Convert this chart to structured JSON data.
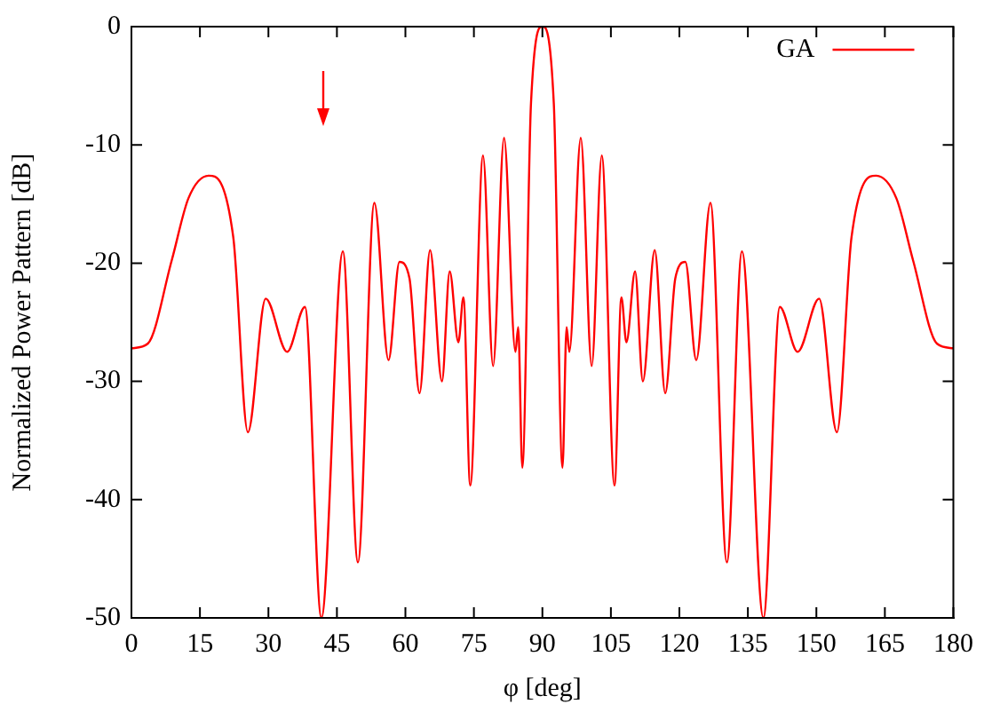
{
  "chart_data": {
    "type": "line",
    "xlabel": "φ [deg]",
    "ylabel": "Normalized Power Pattern [dB]",
    "xlim": [
      0,
      180
    ],
    "xticks": [
      0,
      15,
      30,
      45,
      60,
      75,
      90,
      105,
      120,
      135,
      150,
      165,
      180
    ],
    "ylim": [
      -50,
      0
    ],
    "yticks": [
      -50,
      -40,
      -30,
      -20,
      -10,
      0
    ],
    "grid": false,
    "legend": "top right",
    "marker": "none",
    "line_style": "solid",
    "series": [
      {
        "name": "GA",
        "color": "#ff0000",
        "x": [
          0,
          3.6,
          8.8,
          12.5,
          16.9,
          22.3,
          25.5,
          29.4,
          34.1,
          38.0,
          41.6,
          46.3,
          49.6,
          53.2,
          56.3,
          58.7,
          60.9,
          63.1,
          65.4,
          68.0,
          69.7,
          71.6,
          72.7,
          74.2,
          77.0,
          79.2,
          81.6,
          84.1,
          84.7,
          85.6,
          87.5,
          90,
          92.5,
          94.4,
          95.3,
          95.9,
          98.4,
          100.8,
          103.0,
          105.8,
          107.3,
          108.4,
          110.3,
          112.0,
          114.6,
          116.9,
          119.1,
          121.3,
          123.7,
          126.8,
          130.4,
          133.7,
          138.4,
          142.0,
          145.9,
          150.6,
          154.5,
          157.7,
          163.1,
          167.5,
          171.2,
          176.4,
          180
        ],
        "values": [
          -27.2,
          -26.8,
          -19.8,
          -14.5,
          -12.6,
          -17.8,
          -34.3,
          -23.0,
          -27.5,
          -23.7,
          -50,
          -19.0,
          -45.3,
          -14.9,
          -28.2,
          -19.9,
          -21.3,
          -31.0,
          -18.9,
          -30.0,
          -20.7,
          -26.7,
          -22.9,
          -38.8,
          -10.9,
          -28.7,
          -9.4,
          -27.5,
          -25.4,
          -37.3,
          -6.5,
          0,
          -6.5,
          -37.3,
          -25.4,
          -27.5,
          -9.4,
          -28.7,
          -10.9,
          -38.8,
          -22.9,
          -26.7,
          -20.7,
          -30.0,
          -18.9,
          -31.0,
          -21.3,
          -19.9,
          -28.2,
          -14.9,
          -45.3,
          -19.0,
          -50,
          -23.7,
          -27.5,
          -23.0,
          -34.3,
          -17.8,
          -12.6,
          -14.5,
          -19.8,
          -26.8,
          -27.2
        ]
      }
    ]
  }
}
